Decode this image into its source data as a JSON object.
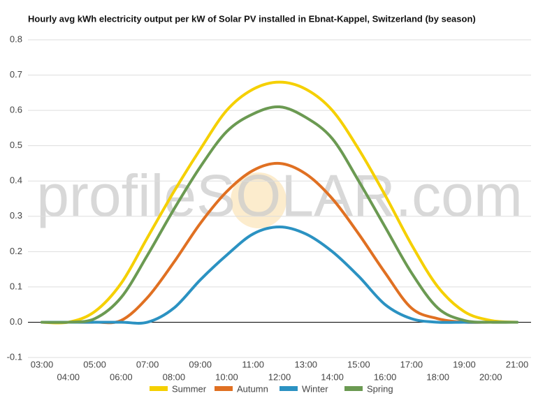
{
  "chart_data": {
    "type": "line",
    "title": "Hourly avg kWh electricity output per kW of Solar PV installed in Ebnat-Kappel, Switzerland (by season)",
    "watermark": "profileSOLAR.com",
    "categories": [
      "03:00",
      "04:00",
      "05:00",
      "06:00",
      "07:00",
      "08:00",
      "09:00",
      "10:00",
      "11:00",
      "12:00",
      "13:00",
      "14:00",
      "15:00",
      "16:00",
      "17:00",
      "18:00",
      "19:00",
      "20:00",
      "21:00"
    ],
    "series": [
      {
        "name": "Summer",
        "color": "#f5d000",
        "values": [
          0,
          0,
          0.03,
          0.11,
          0.24,
          0.37,
          0.49,
          0.6,
          0.66,
          0.68,
          0.66,
          0.6,
          0.49,
          0.36,
          0.22,
          0.1,
          0.03,
          0.005,
          0
        ]
      },
      {
        "name": "Autumn",
        "color": "#e07022",
        "values": [
          0,
          0,
          0,
          0.005,
          0.07,
          0.17,
          0.28,
          0.37,
          0.43,
          0.45,
          0.42,
          0.35,
          0.25,
          0.14,
          0.04,
          0.01,
          0,
          0,
          0
        ]
      },
      {
        "name": "Winter",
        "color": "#2b92c2",
        "values": [
          0,
          0,
          0,
          0,
          0,
          0.04,
          0.12,
          0.19,
          0.25,
          0.27,
          0.25,
          0.2,
          0.13,
          0.05,
          0.01,
          0,
          0,
          0,
          0
        ]
      },
      {
        "name": "Spring",
        "color": "#6b9a52",
        "values": [
          0,
          0,
          0.01,
          0.07,
          0.19,
          0.32,
          0.44,
          0.54,
          0.59,
          0.61,
          0.58,
          0.52,
          0.4,
          0.27,
          0.14,
          0.04,
          0.005,
          0,
          0
        ]
      }
    ],
    "ylim": [
      -0.1,
      0.8
    ],
    "yticks": [
      -0.1,
      {
        "value": 0,
        "label": "0.0"
      },
      0.1,
      0.2,
      0.3,
      0.4,
      0.5,
      0.6,
      0.7,
      0.8
    ],
    "grid": true
  }
}
